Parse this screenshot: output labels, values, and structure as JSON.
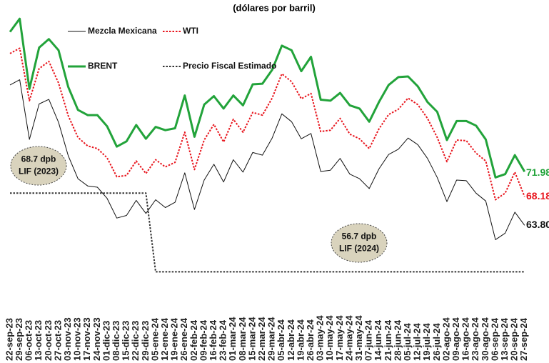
{
  "chart_data": {
    "type": "line",
    "subtitle": "(dólares por barril)",
    "x": [
      "22-sep-23",
      "29-sep-23",
      "06-oct-23",
      "13-oct-23",
      "20-oct-23",
      "27-oct-23",
      "03-nov-23",
      "10-nov-23",
      "17-nov-23",
      "24-nov-23",
      "01-dic-23",
      "08-dic-23",
      "15-dic-23",
      "22-dic-23",
      "29-dic-23",
      "05-ene-24",
      "12-ene-24",
      "19-ene-24",
      "26-ene-24",
      "02-feb-24",
      "09-feb-24",
      "16-feb-24",
      "23-feb-24",
      "01-mar-24",
      "08-mar-24",
      "15-mar-24",
      "22-mar-24",
      "29-mar-24",
      "05-abr-24",
      "12-abr-24",
      "19-abr-24",
      "26-abr-24",
      "03-may-24",
      "10-may-24",
      "17-may-24",
      "24-may-24",
      "31-may-24",
      "07-jun-24",
      "14-jun-24",
      "21-jun-24",
      "28-jun-24",
      "05-jul-24",
      "12-jul-24",
      "19-jul-24",
      "26-jul-24",
      "02-ago-24",
      "09-ago-24",
      "16-ago-24",
      "23-ago-24",
      "30-ago-24",
      "06-sep-24",
      "13-sep-24",
      "20-sep-24",
      "27-sep-24"
    ],
    "ylim": [
      55,
      95
    ],
    "series": [
      {
        "name": "Mezcla Mexicana",
        "color": "#111111",
        "style": "solid",
        "width": 1,
        "values": [
          85.2,
          86.0,
          76.9,
          82.3,
          83.0,
          79.5,
          74.4,
          70.9,
          69.8,
          69.6,
          67.9,
          64.9,
          65.3,
          67.6,
          65.6,
          67.7,
          66.5,
          67.3,
          71.8,
          66.2,
          70.7,
          73.1,
          70.4,
          73.8,
          71.9,
          74.9,
          74.5,
          77.1,
          80.8,
          79.6,
          77.0,
          77.8,
          72.0,
          72.2,
          74.0,
          71.6,
          70.9,
          69.4,
          72.4,
          74.6,
          75.4,
          77.1,
          76.1,
          74.0,
          71.1,
          67.4,
          70.7,
          70.6,
          68.7,
          67.5,
          61.6,
          62.6,
          65.8,
          63.8
        ],
        "value_labels": [
          null,
          null,
          null,
          null,
          null,
          null,
          null,
          null,
          null,
          null,
          null,
          null,
          null,
          null,
          null,
          null,
          null,
          null,
          null,
          null,
          null,
          null,
          null,
          null,
          null,
          null,
          null,
          null,
          null,
          null,
          null,
          null,
          null,
          null,
          null,
          null,
          null,
          null,
          null,
          null,
          null,
          null,
          null,
          null,
          null,
          null,
          null,
          null,
          null,
          null,
          null,
          null,
          null,
          "63.80"
        ]
      },
      {
        "name": "WTI",
        "color": "#e8141c",
        "style": "dotted",
        "width": 2,
        "values": [
          90.0,
          90.8,
          82.8,
          87.7,
          88.8,
          85.5,
          80.5,
          77.2,
          75.9,
          75.5,
          74.1,
          71.2,
          71.4,
          73.6,
          71.7,
          73.8,
          72.7,
          73.4,
          78.0,
          72.3,
          76.8,
          79.2,
          76.5,
          79.97,
          78.0,
          81.0,
          80.6,
          83.2,
          86.9,
          85.7,
          83.1,
          83.9,
          78.1,
          78.3,
          80.1,
          77.7,
          77.0,
          75.5,
          78.5,
          80.7,
          81.5,
          83.2,
          82.2,
          80.1,
          77.2,
          73.5,
          76.8,
          76.7,
          74.8,
          73.6,
          67.7,
          68.7,
          71.9,
          68.18
        ]
      },
      {
        "name": "BRENT",
        "color": "#22a33a",
        "style": "solid",
        "width": 3,
        "values": [
          93.3,
          95.3,
          84.6,
          90.9,
          92.2,
          90.5,
          84.9,
          81.4,
          80.6,
          80.6,
          78.9,
          75.8,
          76.6,
          79.1,
          77.0,
          78.8,
          78.3,
          78.6,
          83.6,
          77.3,
          82.2,
          83.5,
          81.6,
          83.6,
          82.1,
          85.3,
          85.4,
          87.5,
          91.2,
          90.5,
          87.3,
          89.5,
          82.96,
          82.8,
          83.98,
          82.1,
          81.6,
          79.6,
          82.6,
          85.2,
          86.4,
          86.5,
          85.0,
          82.6,
          81.1,
          76.8,
          79.7,
          79.7,
          79.0,
          76.9,
          71.1,
          71.6,
          74.5,
          71.98
        ]
      },
      {
        "name": "Precio Fiscal Estimado",
        "color": "#333333",
        "style": "dotted",
        "width": 2,
        "values": [
          68.7,
          68.7,
          68.7,
          68.7,
          68.7,
          68.7,
          68.7,
          68.7,
          68.7,
          68.7,
          68.7,
          68.7,
          68.7,
          68.7,
          68.7,
          56.7,
          56.7,
          56.7,
          56.7,
          56.7,
          56.7,
          56.7,
          56.7,
          56.7,
          56.7,
          56.7,
          56.7,
          56.7,
          56.7,
          56.7,
          56.7,
          56.7,
          56.7,
          56.7,
          56.7,
          56.7,
          56.7,
          56.7,
          56.7,
          56.7,
          56.7,
          56.7,
          56.7,
          56.7,
          56.7,
          56.7,
          56.7,
          56.7,
          56.7,
          56.7,
          56.7,
          56.7,
          56.7,
          56.7
        ]
      }
    ],
    "annotations": [
      {
        "lines": [
          "68.7 dpb",
          "LIF (2023)"
        ]
      },
      {
        "lines": [
          "56.7 dpb",
          "LIF (2024)"
        ]
      }
    ]
  }
}
